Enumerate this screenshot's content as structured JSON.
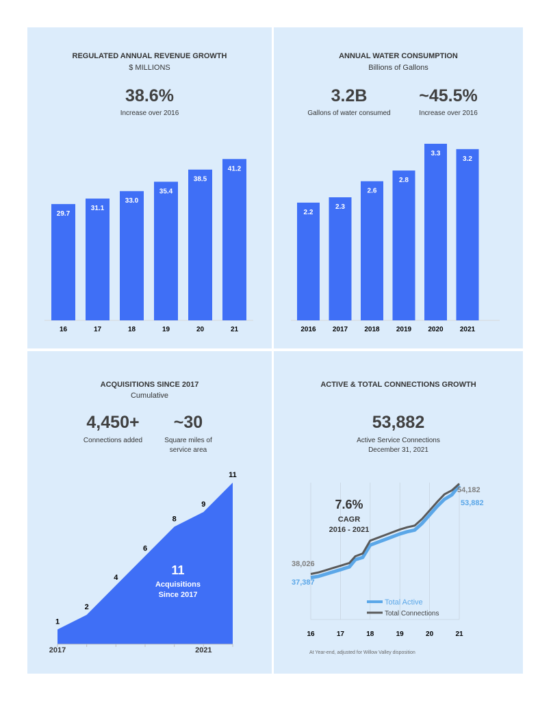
{
  "colors": {
    "panel_bg": "#dcecfb",
    "bar": "#3f6ff6",
    "active_line": "#5ba7e8",
    "total_line": "#5a5a5a",
    "muted": "#8a8a8a"
  },
  "revenue": {
    "title": "REGULATED ANNUAL REVENUE GROWTH",
    "subtitle": "$ MILLIONS",
    "stat_value": "38.6%",
    "stat_caption": "Increase over 2016"
  },
  "water": {
    "title": "ANNUAL WATER CONSUMPTION",
    "subtitle": "Billions of Gallons",
    "stat1_value": "3.2B",
    "stat1_caption": "Gallons of water consumed",
    "stat2_value": "~45.5%",
    "stat2_caption": "Increase over 2016"
  },
  "acquisitions": {
    "title": "ACQUISITIONS SINCE 2017",
    "subtitle": "Cumulative",
    "stat1_value": "4,450+",
    "stat1_caption": "Connections added",
    "stat2_value": "~30",
    "stat2_caption_line1": "Square miles of",
    "stat2_caption_line2": "service area",
    "overlay_value": "11",
    "overlay_line1": "Acquisitions",
    "overlay_line2": "Since 2017"
  },
  "connections": {
    "title": "ACTIVE & TOTAL CONNECTIONS GROWTH",
    "stat_value": "53,882",
    "stat_caption_line1": "Active Service Connections",
    "stat_caption_line2": "December 31, 2021",
    "cagr_value": "7.6%",
    "cagr_label": "CAGR",
    "cagr_range": "2016 - 2021",
    "footnote": "At Year-end, adjusted for Willow Valley disposition"
  },
  "chart_data": [
    {
      "type": "bar",
      "title": "REGULATED ANNUAL REVENUE GROWTH",
      "ylabel": "$ MILLIONS",
      "categories": [
        "16",
        "17",
        "18",
        "19",
        "20",
        "21"
      ],
      "values": [
        29.7,
        31.1,
        33.0,
        35.4,
        38.5,
        41.2
      ],
      "labels": [
        "29.7",
        "31.1",
        "33.0",
        "35.4",
        "38.5",
        "41.2"
      ],
      "ylim": [
        0,
        43
      ]
    },
    {
      "type": "bar",
      "title": "ANNUAL WATER CONSUMPTION",
      "ylabel": "Billions of Gallons",
      "categories": [
        "2016",
        "2017",
        "2018",
        "2019",
        "2020",
        "2021"
      ],
      "values": [
        2.2,
        2.3,
        2.6,
        2.8,
        3.3,
        3.2
      ],
      "labels": [
        "2.2",
        "2.3",
        "2.6",
        "2.8",
        "3.3",
        "3.2"
      ],
      "ylim": [
        0,
        3.3
      ]
    },
    {
      "type": "area",
      "title": "ACQUISITIONS SINCE 2017",
      "subtitle": "Cumulative",
      "x": [
        0,
        1,
        2,
        3,
        4,
        5,
        6
      ],
      "values": [
        1,
        2,
        4,
        6,
        8,
        9,
        11
      ],
      "labels": [
        "1",
        "2",
        "4",
        "6",
        "8",
        "9",
        "11"
      ],
      "x_tick_labels": [
        {
          "x": 0,
          "label": "2017"
        },
        {
          "x": 5,
          "label": "2021"
        }
      ],
      "xlim": [
        0,
        6
      ],
      "ylim": [
        0,
        11
      ]
    },
    {
      "type": "line",
      "title": "ACTIVE & TOTAL CONNECTIONS GROWTH",
      "categories": [
        "16",
        "17",
        "18",
        "19",
        "20",
        "21"
      ],
      "xlim": [
        16,
        21
      ],
      "ylim": [
        30000,
        55000
      ],
      "series": [
        {
          "name": "Total Active",
          "x": [
            16,
            16.25,
            16.5,
            16.75,
            17,
            17.3,
            17.5,
            17.75,
            18,
            18.25,
            18.5,
            18.75,
            19,
            19.25,
            19.5,
            19.75,
            20,
            20.25,
            20.5,
            20.75,
            21
          ],
          "values": [
            37387,
            37600,
            38000,
            38400,
            38800,
            39300,
            40600,
            41000,
            43200,
            43700,
            44200,
            44700,
            45200,
            45600,
            45900,
            47100,
            48600,
            50100,
            51400,
            52200,
            53882
          ],
          "start_label": "37,387",
          "end_label": "53,882"
        },
        {
          "name": "Total Connections",
          "x": [
            16,
            16.25,
            16.5,
            16.75,
            17,
            17.3,
            17.5,
            17.75,
            18,
            18.25,
            18.5,
            18.75,
            19,
            19.25,
            19.5,
            19.75,
            20,
            20.25,
            20.5,
            20.75,
            21
          ],
          "values": [
            38026,
            38300,
            38700,
            39100,
            39500,
            40000,
            41200,
            41700,
            44000,
            44500,
            45000,
            45500,
            46000,
            46400,
            46700,
            47900,
            49400,
            50900,
            52300,
            53000,
            54182
          ],
          "start_label": "38,026",
          "end_label": "54,182"
        }
      ]
    }
  ]
}
